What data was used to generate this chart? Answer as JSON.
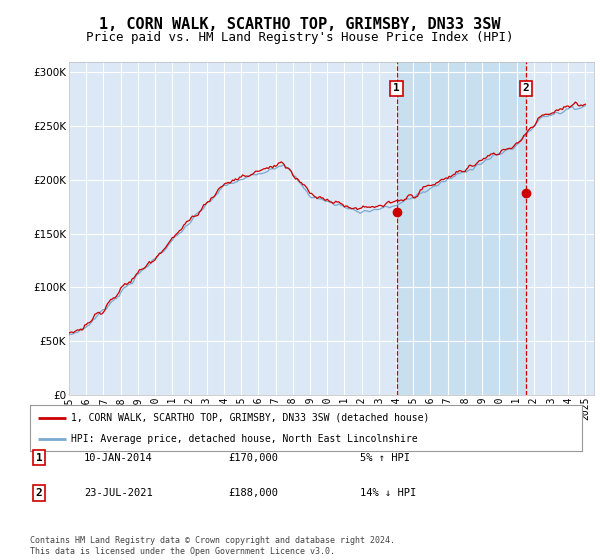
{
  "title": "1, CORN WALK, SCARTHO TOP, GRIMSBY, DN33 3SW",
  "subtitle": "Price paid vs. HM Land Registry's House Price Index (HPI)",
  "title_fontsize": 11,
  "subtitle_fontsize": 9,
  "background_color": "#ffffff",
  "plot_bg_color": "#dce8f5",
  "grid_color": "#ffffff",
  "ylim": [
    0,
    310000
  ],
  "yticks": [
    0,
    50000,
    100000,
    150000,
    200000,
    250000,
    300000
  ],
  "legend_line1": "1, CORN WALK, SCARTHO TOP, GRIMSBY, DN33 3SW (detached house)",
  "legend_line2": "HPI: Average price, detached house, North East Lincolnshire",
  "line1_color": "#cc0000",
  "line2_color": "#7aaad0",
  "shade_color": "#c8dff0",
  "ann1_x": 2014.03,
  "ann2_x": 2021.55,
  "ann1_price": 170000,
  "ann2_price": 188000,
  "ann1_date": "10-JAN-2014",
  "ann2_date": "23-JUL-2021",
  "ann1_pct": "5%",
  "ann1_dir": "↑",
  "ann2_pct": "14%",
  "ann2_dir": "↓",
  "footer": "Contains HM Land Registry data © Crown copyright and database right 2024.\nThis data is licensed under the Open Government Licence v3.0.",
  "xtick_years": [
    1995,
    1996,
    1997,
    1998,
    1999,
    2000,
    2001,
    2002,
    2003,
    2004,
    2005,
    2006,
    2007,
    2008,
    2009,
    2010,
    2011,
    2012,
    2013,
    2014,
    2015,
    2016,
    2017,
    2018,
    2019,
    2020,
    2021,
    2022,
    2023,
    2024,
    2025
  ]
}
